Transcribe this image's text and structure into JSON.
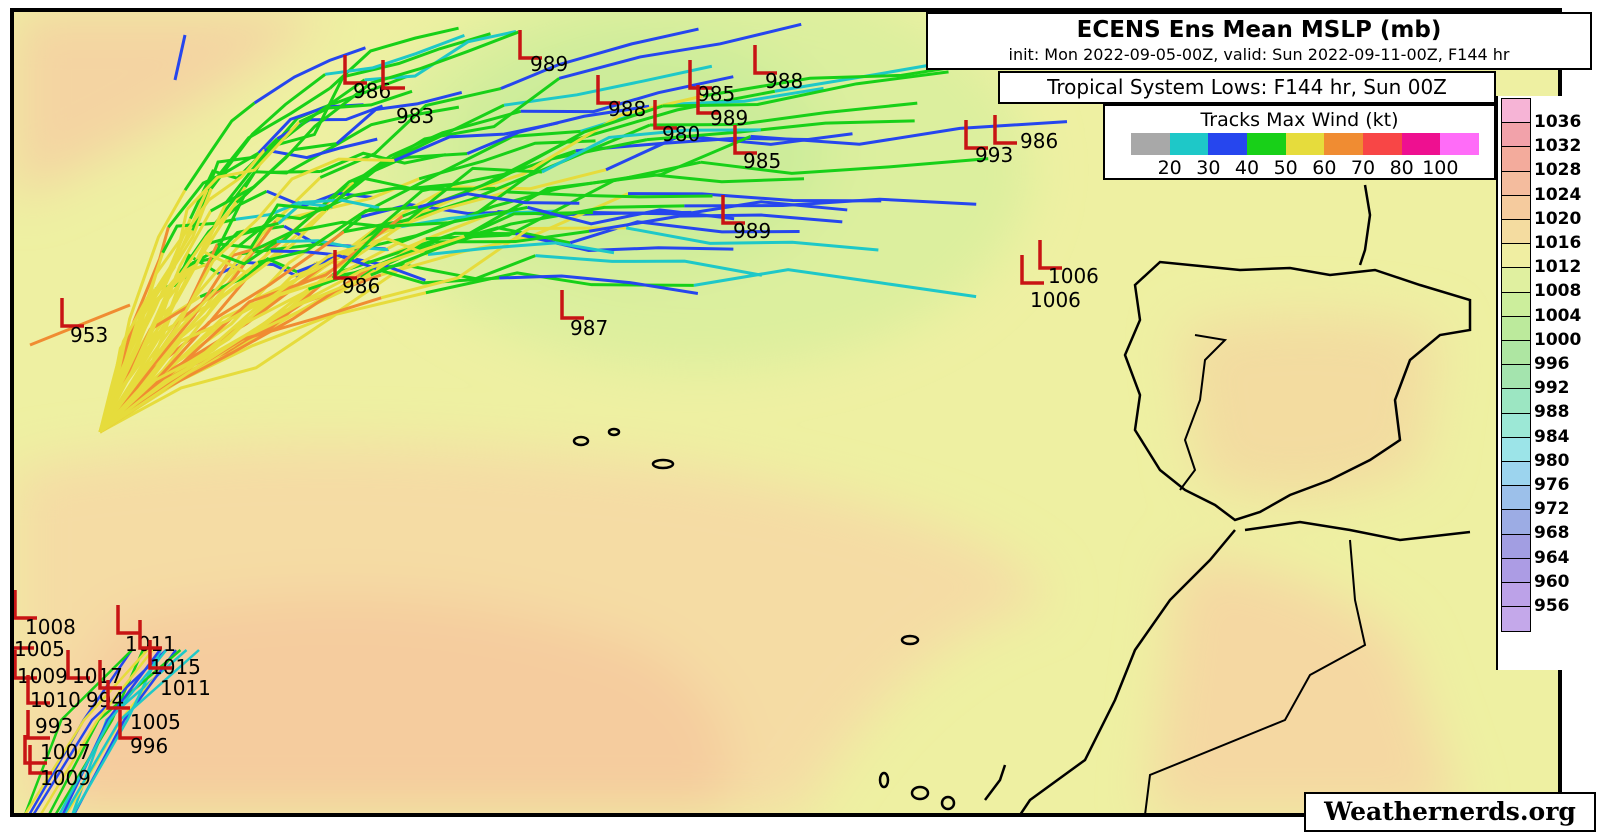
{
  "header": {
    "title": "ECENS Ens Mean MSLP (mb)",
    "subtitle": "init: Mon 2022-09-05-00Z, valid: Sun 2022-09-11-00Z, F144 hr"
  },
  "subheader": "Tropical System Lows: F144 hr, Sun 00Z",
  "wind_legend": {
    "title": "Tracks Max Wind (kt)",
    "colors": [
      "#a8a8a8",
      "#1ec8c8",
      "#2646ee",
      "#18d018",
      "#e6dc3c",
      "#f08c32",
      "#f84646",
      "#ee1090",
      "#ff6cf8"
    ],
    "ticks": [
      "20",
      "30",
      "40",
      "50",
      "60",
      "70",
      "80",
      "100"
    ]
  },
  "pressure_colorbar": {
    "labels": [
      "1036",
      "1032",
      "1028",
      "1024",
      "1020",
      "1016",
      "1012",
      "1008",
      "1004",
      "1000",
      "996",
      "992",
      "988",
      "984",
      "980",
      "976",
      "972",
      "968",
      "964",
      "960",
      "956"
    ],
    "colors": [
      "#f6b4d6",
      "#f2a2aa",
      "#f3ab9c",
      "#f4bc9e",
      "#f5cb9e",
      "#f4dca0",
      "#f0eea2",
      "#e0f0a0",
      "#ccee9c",
      "#bcea9c",
      "#aee6a2",
      "#a4e4ae",
      "#9ce6c2",
      "#9ce8d6",
      "#9ce4e8",
      "#9cd4ee",
      "#9cc0ea",
      "#9cace4",
      "#a29ee2",
      "#ac9ce4",
      "#bca2e8",
      "#c4a8ea"
    ]
  },
  "lows": [
    "953",
    "986",
    "983",
    "989",
    "988",
    "980",
    "985",
    "989",
    "988",
    "985",
    "993",
    "986",
    "989",
    "986",
    "987",
    "1006",
    "1006",
    "1008",
    "1005",
    "1009",
    "1017",
    "1010",
    "994",
    "1011",
    "1015",
    "1011",
    "1005",
    "996",
    "993",
    "1007",
    "1009"
  ],
  "credit": "Weathernerds.org",
  "colors": {
    "low_marker": "#c81414",
    "coastline": "#000000"
  }
}
